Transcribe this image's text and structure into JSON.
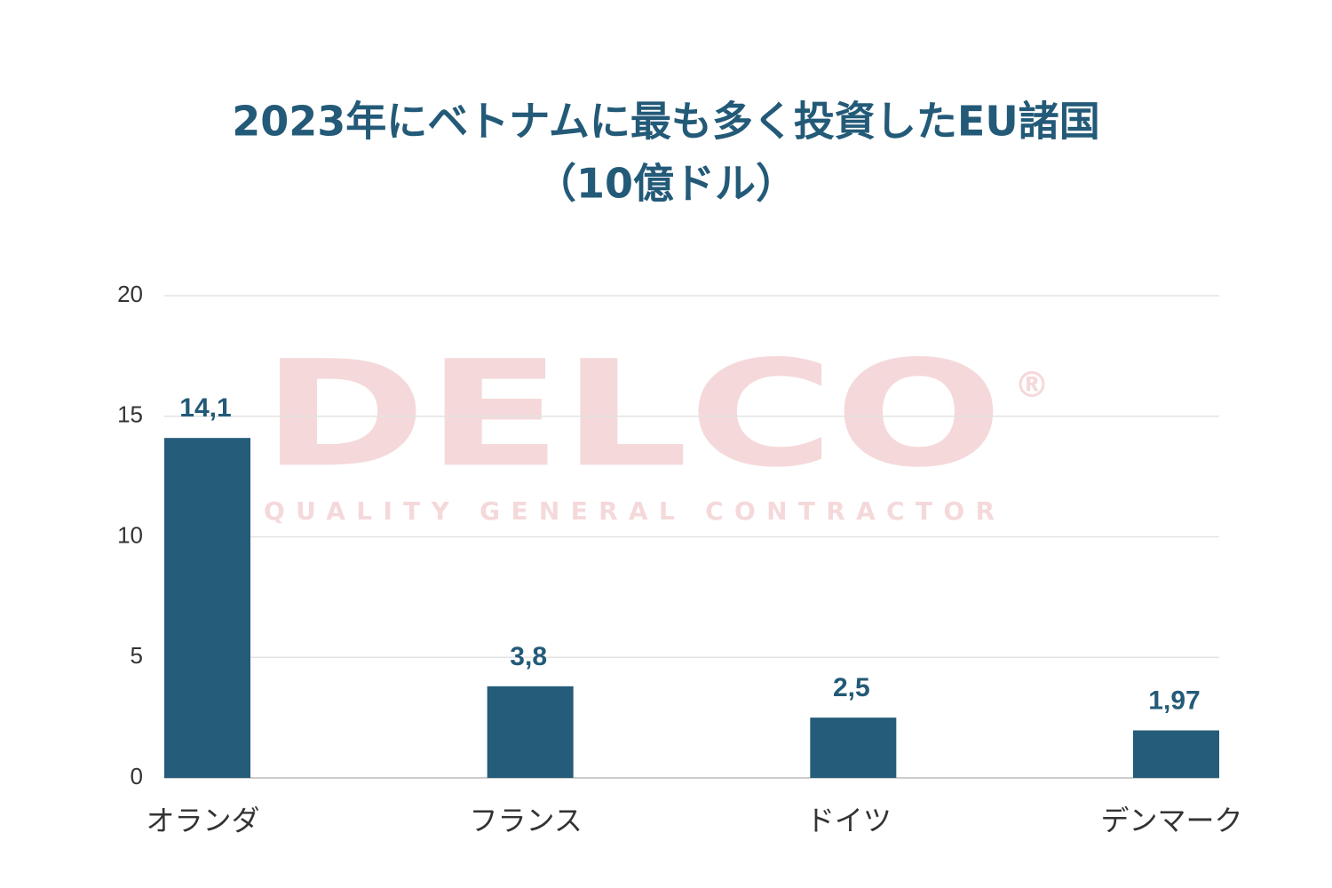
{
  "chart_data": {
    "type": "bar",
    "title": "2023年にベトナムに最も多く投資したEU諸国",
    "subtitle": "（10億ドル）",
    "categories": [
      "オランダ",
      "フランス",
      "ドイツ",
      "デンマーク"
    ],
    "values": [
      14.1,
      3.8,
      2.5,
      1.97
    ],
    "value_labels": [
      "14,1",
      "3,8",
      "2,5",
      "1,97"
    ],
    "color": "#255c7a",
    "ylim": [
      0,
      20
    ],
    "yticks": [
      0,
      5,
      10,
      15,
      20
    ],
    "grid": true,
    "watermark": {
      "text": "DELCO",
      "mark": "®",
      "tagline": "QUALITY GENERAL CONTRACTOR"
    }
  }
}
